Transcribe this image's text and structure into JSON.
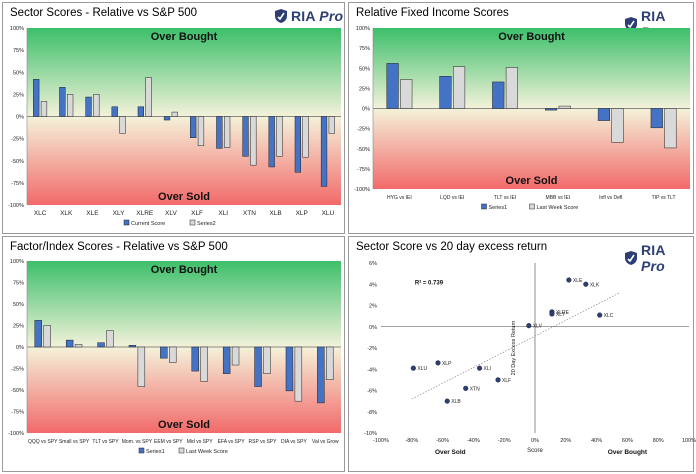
{
  "brand": {
    "name": "RIA",
    "suffix": "Pro",
    "color": "#2c3e73"
  },
  "colors": {
    "current": "#4472c4",
    "previous": "#d9d9d9",
    "band_top": "#3cbf6a",
    "band_mid": "#f4f2da",
    "band_bottom": "#f26a6a",
    "scatter_point": "#2c3e73"
  },
  "chart_data": [
    {
      "type": "bar",
      "title": "Sector Scores - Relative vs S&P 500",
      "top_label": "Over Bought",
      "bottom_label": "Over Sold",
      "ylim": [
        -100,
        100
      ],
      "y_ticks": [
        "100%",
        "75%",
        "50%",
        "25%",
        "0%",
        "-25%",
        "-50%",
        "-75%",
        "-100%"
      ],
      "categories": [
        "XLC",
        "XLK",
        "XLE",
        "XLY",
        "XLRE",
        "XLV",
        "XLF",
        "XLI",
        "XTN",
        "XLB",
        "XLP",
        "XLU"
      ],
      "series": [
        {
          "name": "Current Score",
          "values": [
            42,
            33,
            22,
            11,
            11,
            -4,
            -24,
            -36,
            -45,
            -57,
            -63,
            -79
          ]
        },
        {
          "name": "Series2",
          "values": [
            17,
            25,
            25,
            -19,
            44,
            5,
            -33,
            -35,
            -55,
            -45,
            -46,
            -19
          ]
        }
      ]
    },
    {
      "type": "bar",
      "title": "Relative Fixed Income Scores",
      "top_label": "Over Bought",
      "bottom_label": "Over Sold",
      "ylim": [
        -100,
        100
      ],
      "y_ticks": [
        "100%",
        "75%",
        "50%",
        "25%",
        "0%",
        "-25%",
        "-50%",
        "-75%",
        "-100%"
      ],
      "categories": [
        "HYG vs IEI",
        "LQD vs IEI",
        "TLT vs IEI",
        "MBB vs IEI",
        "Infl vs Defl",
        "TIP vs TLT"
      ],
      "series": [
        {
          "name": "Series1",
          "values": [
            56,
            40,
            33,
            -2,
            -15,
            -24
          ]
        },
        {
          "name": "Last Week Score",
          "values": [
            36,
            52,
            51,
            3,
            -42,
            -49
          ]
        }
      ]
    },
    {
      "type": "bar",
      "title": "Factor/Index Scores - Relative vs S&P 500",
      "top_label": "Over Bought",
      "bottom_label": "Over Sold",
      "ylim": [
        -100,
        100
      ],
      "y_ticks": [
        "100%",
        "75%",
        "50%",
        "25%",
        "0%",
        "-25%",
        "-50%",
        "-75%",
        "-100%"
      ],
      "categories": [
        "QQQ vs SPY",
        "Small vs SPY",
        "TLT vs SPY",
        "Mom. vs SPY",
        "EEM vs SPY",
        "Mid vs SPY",
        "EFA vs SPY",
        "RSP vs SPY",
        "DIA vs SPY",
        "Val vs Grow"
      ],
      "series": [
        {
          "name": "Series1",
          "values": [
            31,
            8,
            5,
            2,
            -13,
            -28,
            -31,
            -46,
            -51,
            -65
          ]
        },
        {
          "name": "Last Week Score",
          "values": [
            25,
            3,
            19,
            -46,
            -18,
            -40,
            -21,
            -31,
            -63,
            -38
          ]
        }
      ]
    },
    {
      "type": "scatter",
      "title": "Sector Score vs 20 day excess return",
      "xlabel": "Score",
      "ylabel": "20 Day Excess Return",
      "xlim": [
        -100,
        100
      ],
      "ylim": [
        -10,
        6
      ],
      "x_ticks": [
        "-100%",
        "-80%",
        "-60%",
        "-40%",
        "-20%",
        "0%",
        "20%",
        "40%",
        "60%",
        "80%",
        "100%"
      ],
      "y_ticks": [
        "6%",
        "4%",
        "2%",
        "0%",
        "-2%",
        "-4%",
        "-6%",
        "-8%",
        "-10%"
      ],
      "annotation": "R² = 0.739",
      "left_label": "Over Sold",
      "right_label": "Over Bought",
      "points": [
        {
          "label": "XLU",
          "x": -79,
          "y": -3.9
        },
        {
          "label": "XLP",
          "x": -63,
          "y": -3.4
        },
        {
          "label": "XLB",
          "x": -57,
          "y": -7.0
        },
        {
          "label": "XTN",
          "x": -45,
          "y": -5.8
        },
        {
          "label": "XLI",
          "x": -36,
          "y": -3.9
        },
        {
          "label": "XLF",
          "x": -24,
          "y": -5.0
        },
        {
          "label": "XLV",
          "x": -4,
          "y": 0.1
        },
        {
          "label": "XLRE",
          "x": 11,
          "y": 1.4
        },
        {
          "label": "XLY",
          "x": 11,
          "y": 1.2
        },
        {
          "label": "XLE",
          "x": 22,
          "y": 4.4
        },
        {
          "label": "XLK",
          "x": 33,
          "y": 4.0
        },
        {
          "label": "XLC",
          "x": 42,
          "y": 1.1
        }
      ],
      "trendline": [
        [
          -80,
          -6.8
        ],
        [
          55,
          3.2
        ]
      ]
    }
  ]
}
